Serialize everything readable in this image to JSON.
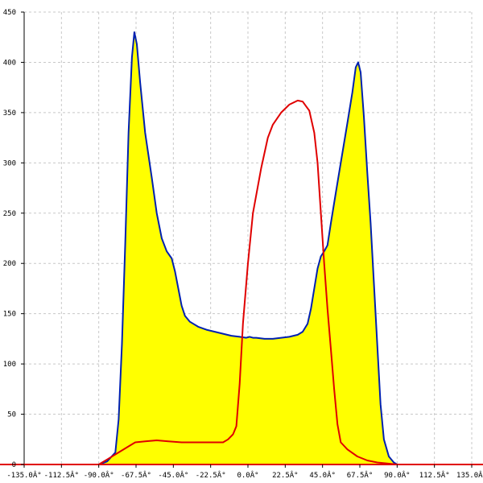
{
  "chart_data": {
    "type": "area",
    "title": "",
    "xlabel": "",
    "ylabel": "",
    "xlim": [
      -135,
      135
    ],
    "ylim": [
      0,
      450
    ],
    "grid": true,
    "x_ticks": [
      -135,
      -112.5,
      -90,
      -67.5,
      -45,
      -22.5,
      0,
      22.5,
      45,
      67.5,
      90,
      112.5,
      135
    ],
    "x_tick_labels": [
      "-135.0Â°",
      "-112.5Â°",
      "-90.0Â°",
      "-67.5Â°",
      "-45.0Â°",
      "-22.5Â°",
      "0.0Â°",
      "22.5Â°",
      "45.0Â°",
      "67.5Â°",
      "90.0Â°",
      "112.5Â°",
      "135.0Â°"
    ],
    "y_ticks": [
      0,
      50,
      100,
      150,
      200,
      250,
      300,
      350,
      400,
      450
    ],
    "y_tick_labels": [
      "0",
      "50",
      "100",
      "150",
      "200",
      "250",
      "300",
      "350",
      "400",
      "450"
    ],
    "fill_color": "#ffff00",
    "series": [
      {
        "color": "#0020b0",
        "fill": true,
        "points": [
          [
            -90,
            0
          ],
          [
            -85,
            3
          ],
          [
            -80,
            12
          ],
          [
            -78,
            45
          ],
          [
            -76,
            120
          ],
          [
            -74,
            220
          ],
          [
            -72,
            330
          ],
          [
            -70,
            405
          ],
          [
            -68.5,
            430
          ],
          [
            -67,
            418
          ],
          [
            -65,
            380
          ],
          [
            -62,
            330
          ],
          [
            -58,
            285
          ],
          [
            -55,
            250
          ],
          [
            -52,
            225
          ],
          [
            -49,
            212
          ],
          [
            -46,
            205
          ],
          [
            -44,
            192
          ],
          [
            -42,
            175
          ],
          [
            -40,
            158
          ],
          [
            -38,
            148
          ],
          [
            -35,
            142
          ],
          [
            -30,
            137
          ],
          [
            -25,
            134
          ],
          [
            -20,
            132
          ],
          [
            -15,
            130
          ],
          [
            -10,
            128
          ],
          [
            -5,
            127
          ],
          [
            -1,
            126
          ],
          [
            1,
            127
          ],
          [
            3,
            126
          ],
          [
            5,
            126
          ],
          [
            10,
            125
          ],
          [
            15,
            125
          ],
          [
            20,
            126
          ],
          [
            25,
            127
          ],
          [
            30,
            129
          ],
          [
            33,
            132
          ],
          [
            36,
            140
          ],
          [
            38,
            155
          ],
          [
            40,
            175
          ],
          [
            42,
            195
          ],
          [
            44,
            207
          ],
          [
            46,
            212
          ],
          [
            48,
            218
          ],
          [
            50,
            240
          ],
          [
            53,
            270
          ],
          [
            56,
            300
          ],
          [
            60,
            340
          ],
          [
            63,
            370
          ],
          [
            65,
            395
          ],
          [
            66.5,
            400
          ],
          [
            68,
            390
          ],
          [
            70,
            345
          ],
          [
            72,
            290
          ],
          [
            74,
            240
          ],
          [
            76,
            180
          ],
          [
            78,
            120
          ],
          [
            80,
            60
          ],
          [
            82,
            25
          ],
          [
            85,
            8
          ],
          [
            88,
            2
          ],
          [
            90,
            0
          ]
        ]
      },
      {
        "color": "#e00000",
        "fill": false,
        "points": [
          [
            -135,
            0
          ],
          [
            -90,
            0
          ],
          [
            -85,
            5
          ],
          [
            -78,
            12
          ],
          [
            -72,
            18
          ],
          [
            -68,
            22
          ],
          [
            -62,
            23
          ],
          [
            -55,
            24
          ],
          [
            -48,
            23
          ],
          [
            -40,
            22
          ],
          [
            -30,
            22
          ],
          [
            -20,
            22
          ],
          [
            -15,
            22
          ],
          [
            -12,
            25
          ],
          [
            -9,
            30
          ],
          [
            -7,
            38
          ],
          [
            -5,
            80
          ],
          [
            -3,
            140
          ],
          [
            0,
            200
          ],
          [
            3,
            250
          ],
          [
            8,
            295
          ],
          [
            12,
            325
          ],
          [
            15,
            338
          ],
          [
            20,
            350
          ],
          [
            25,
            358
          ],
          [
            30,
            362
          ],
          [
            33,
            361
          ],
          [
            37,
            352
          ],
          [
            40,
            330
          ],
          [
            42,
            300
          ],
          [
            44,
            250
          ],
          [
            46,
            200
          ],
          [
            48,
            155
          ],
          [
            50,
            115
          ],
          [
            52,
            75
          ],
          [
            54,
            40
          ],
          [
            56,
            22
          ],
          [
            60,
            15
          ],
          [
            66,
            8
          ],
          [
            72,
            4
          ],
          [
            78,
            2
          ],
          [
            84,
            1
          ],
          [
            90,
            0
          ],
          [
            135,
            0
          ]
        ]
      }
    ]
  }
}
